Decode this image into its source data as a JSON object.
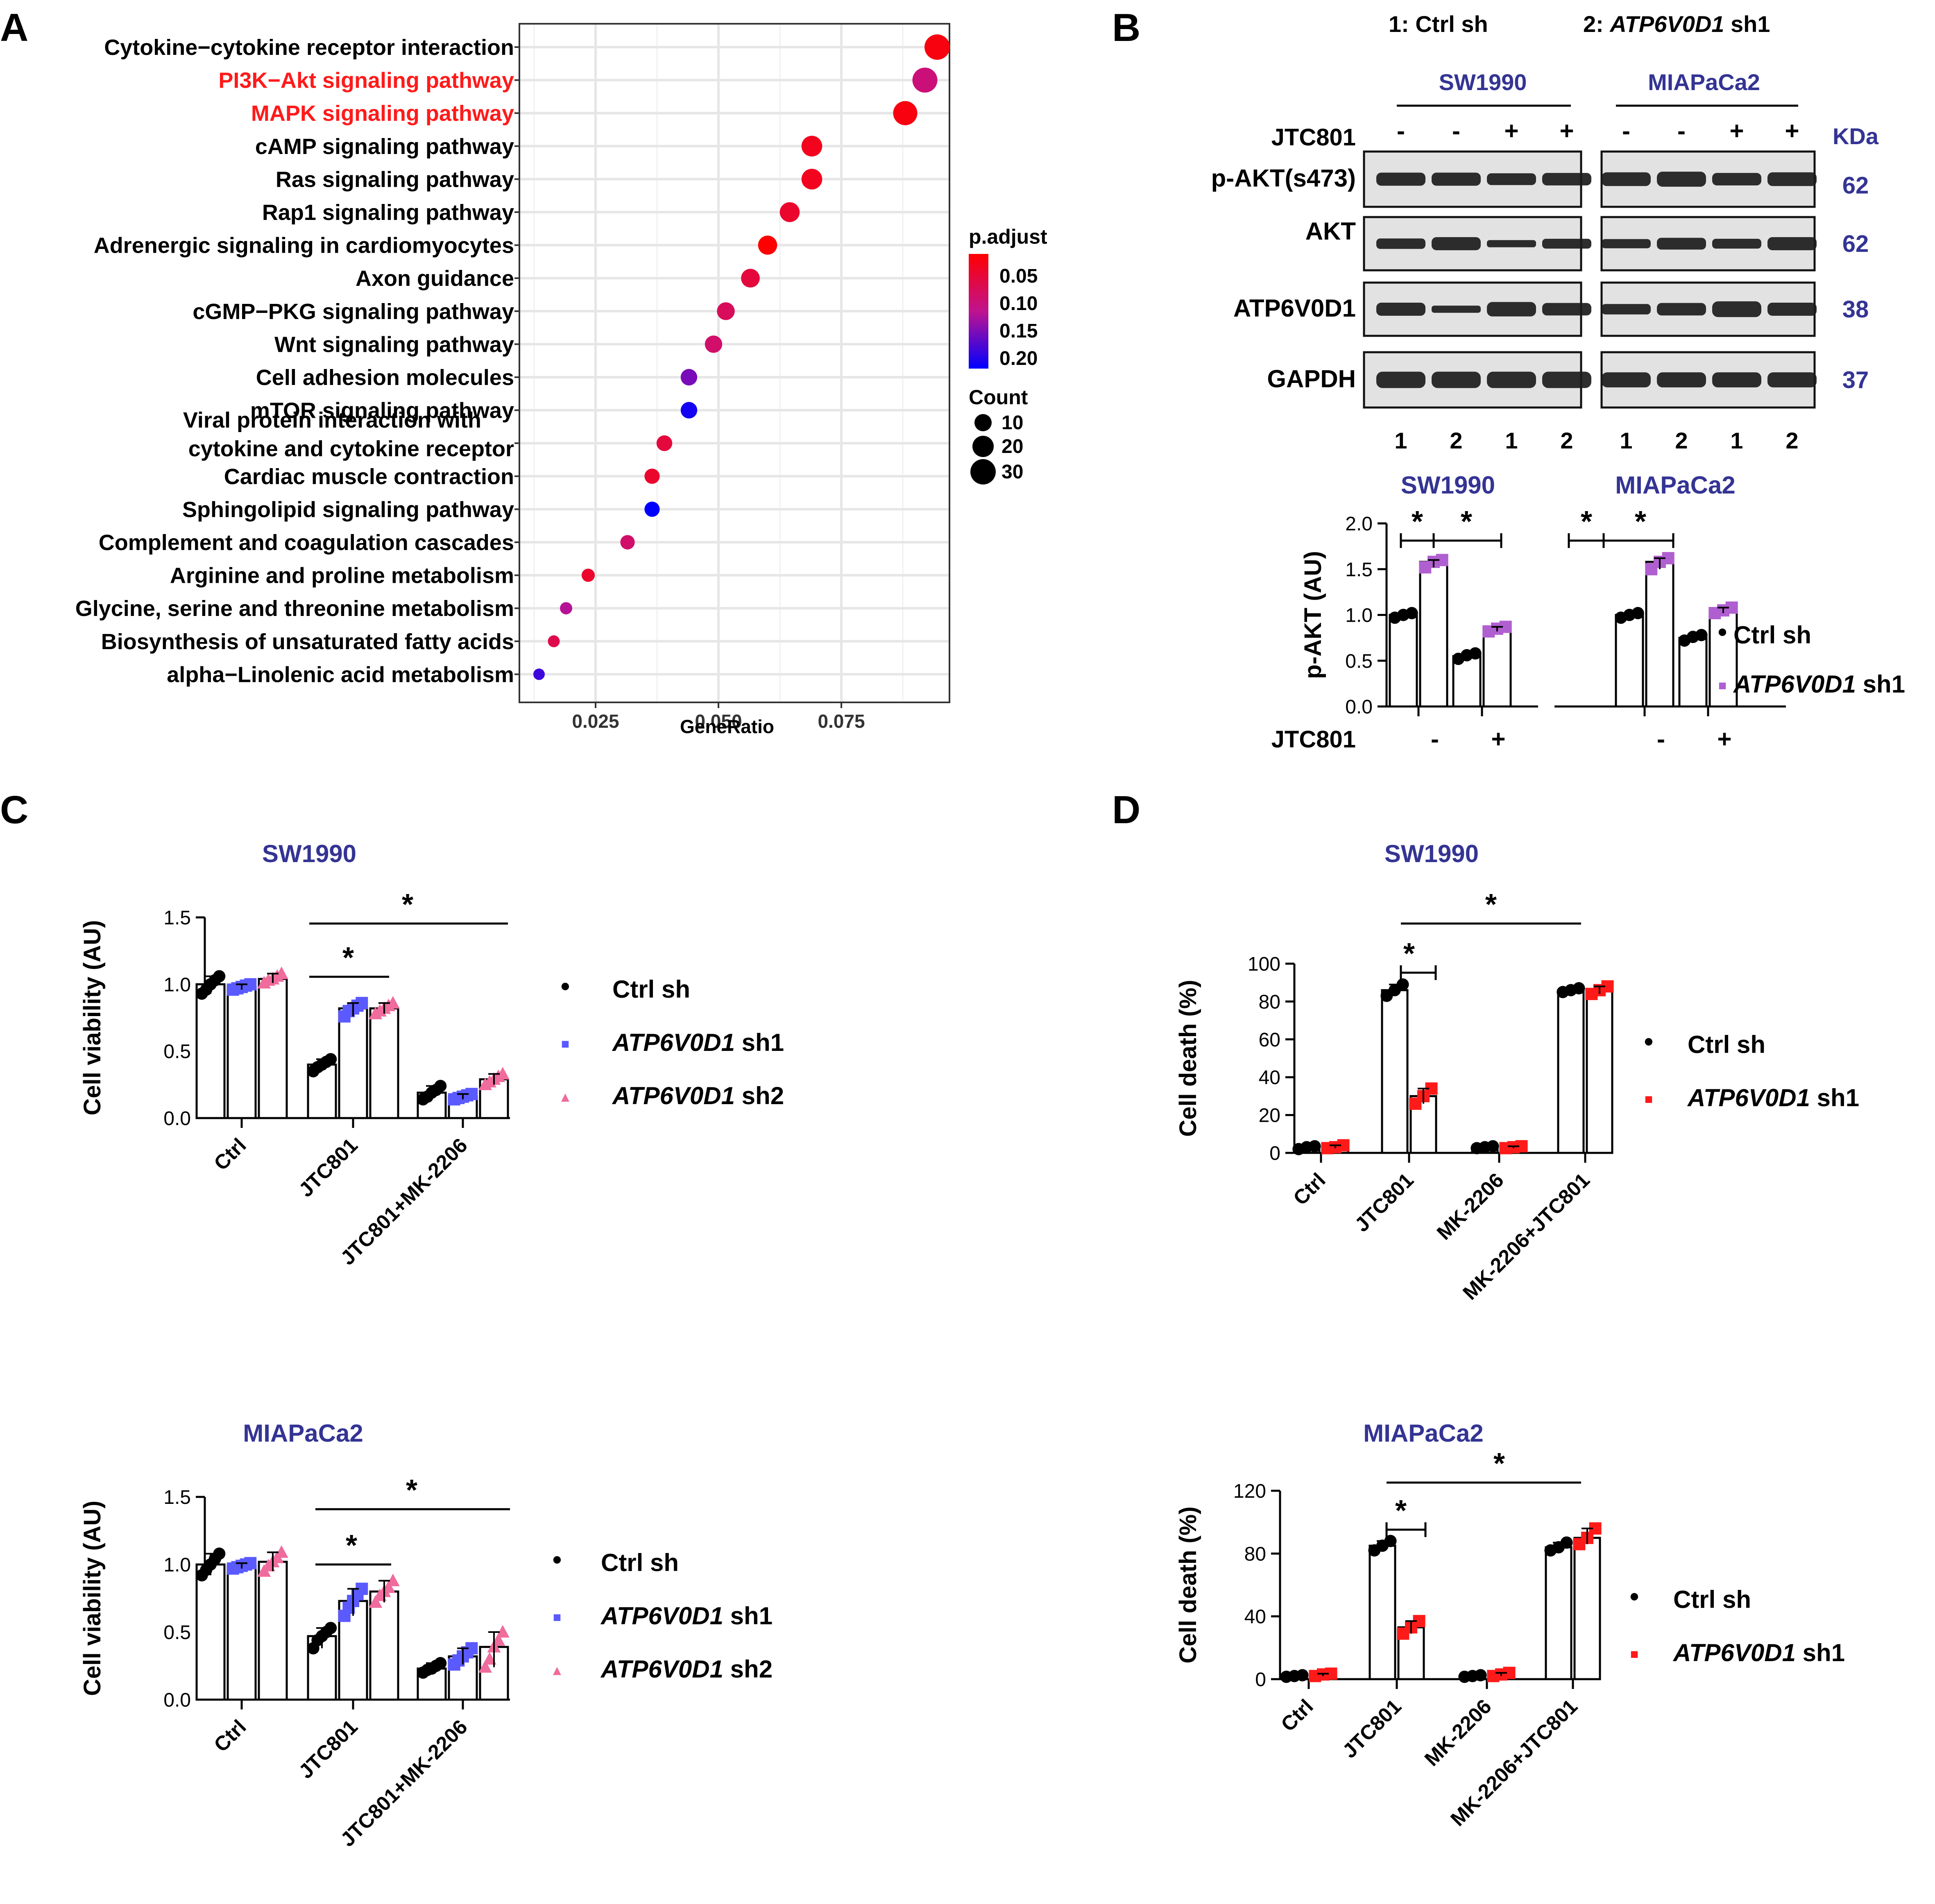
{
  "panel_labels": {
    "a": "A",
    "b": "B",
    "c": "C",
    "d": "D"
  },
  "colors": {
    "ctrl": "#000000",
    "sh1_violet": "#b05fd0",
    "sh1_blue": "#5a5aff",
    "sh2_pink": "#ef6c9c",
    "sh1_red": "#ff1a1a",
    "title_blue": "#343494",
    "highlight_red": "#ff1a1a",
    "padj_low": "#ff0000",
    "padj_high": "#0000ff"
  },
  "panel_b": {
    "legend_1": "1: Ctrl sh",
    "legend_2_prefix": "2: ",
    "legend_2_gene": "ATP6V0D1",
    "legend_2_suffix": " sh1",
    "cell_lines": [
      "SW1990",
      "MIAPaCa2"
    ],
    "treatment_label": "JTC801",
    "treatment_signs": [
      "-",
      "-",
      "+",
      "+",
      "-",
      "-",
      "+",
      "+"
    ],
    "kda_label": "KDa",
    "blots": [
      {
        "label": "p-AKT(s473)",
        "kda": "62"
      },
      {
        "label": "AKT",
        "kda": "62"
      },
      {
        "label": "ATP6V0D1",
        "kda": "38"
      },
      {
        "label": "GAPDH",
        "kda": "37"
      }
    ],
    "lane_numbers": [
      "1",
      "2",
      "1",
      "2",
      "1",
      "2",
      "1",
      "2"
    ]
  },
  "chart_data": [
    {
      "id": "A",
      "type": "scatter",
      "title": "",
      "xlabel": "GeneRatio",
      "xlim": [
        0.0095,
        0.097
      ],
      "xticks": [
        "0.025",
        "0.050",
        "0.075"
      ],
      "grid": true,
      "legend_color_title": "p.adjust",
      "legend_color_ticks": [
        "0.05",
        "0.10",
        "0.15",
        "0.20"
      ],
      "legend_size_title": "Count",
      "legend_size_ticks": [
        "10",
        "20",
        "30"
      ],
      "highlighted_terms": [
        "PI3K−Akt signaling pathway",
        "MAPK signaling pathway"
      ],
      "terms": [
        {
          "label": "Cytokine−cytokine receptor interaction",
          "x": 0.0945,
          "p_adjust": 0.03,
          "count": 39
        },
        {
          "label": "PI3K−Akt signaling pathway",
          "x": 0.092,
          "p_adjust": 0.1,
          "count": 38
        },
        {
          "label": "MAPK signaling pathway",
          "x": 0.088,
          "p_adjust": 0.03,
          "count": 36
        },
        {
          "label": "cAMP signaling pathway",
          "x": 0.069,
          "p_adjust": 0.04,
          "count": 28
        },
        {
          "label": "Ras signaling pathway",
          "x": 0.069,
          "p_adjust": 0.04,
          "count": 28
        },
        {
          "label": "Rap1 signaling pathway",
          "x": 0.0645,
          "p_adjust": 0.05,
          "count": 26
        },
        {
          "label": "Adrenergic signaling in cardiomyocytes",
          "x": 0.06,
          "p_adjust": 0.02,
          "count": 24
        },
        {
          "label": "Axon guidance",
          "x": 0.0565,
          "p_adjust": 0.06,
          "count": 23
        },
        {
          "label": "cGMP−PKG signaling pathway",
          "x": 0.0515,
          "p_adjust": 0.08,
          "count": 21
        },
        {
          "label": "Wnt signaling pathway",
          "x": 0.049,
          "p_adjust": 0.09,
          "count": 20
        },
        {
          "label": "Cell adhesion molecules",
          "x": 0.044,
          "p_adjust": 0.15,
          "count": 18
        },
        {
          "label": "mTOR signaling pathway",
          "x": 0.044,
          "p_adjust": 0.2,
          "count": 18
        },
        {
          "label": "Viral protein interaction with cytokine and cytokine receptor",
          "x": 0.039,
          "p_adjust": 0.06,
          "count": 16
        },
        {
          "label": "Cardiac muscle contraction",
          "x": 0.0365,
          "p_adjust": 0.05,
          "count": 15
        },
        {
          "label": "Sphingolipid signaling pathway",
          "x": 0.0365,
          "p_adjust": 0.21,
          "count": 15
        },
        {
          "label": "Complement and coagulation cascades",
          "x": 0.0315,
          "p_adjust": 0.09,
          "count": 13
        },
        {
          "label": "Arginine and proline metabolism",
          "x": 0.0235,
          "p_adjust": 0.05,
          "count": 10
        },
        {
          "label": "Glycine, serine and threonine metabolism",
          "x": 0.019,
          "p_adjust": 0.12,
          "count": 8
        },
        {
          "label": "Biosynthesis of unsaturated fatty acids",
          "x": 0.0165,
          "p_adjust": 0.07,
          "count": 7
        },
        {
          "label": "alpha−Linolenic acid metabolism",
          "x": 0.0135,
          "p_adjust": 0.18,
          "count": 6
        }
      ]
    },
    {
      "id": "B-quant",
      "type": "bar",
      "title": "",
      "ylabel": "p-AKT (AU)",
      "ylim": [
        0,
        2.0
      ],
      "yticks": [
        "0.0",
        "0.5",
        "1.0",
        "1.5",
        "2.0"
      ],
      "group_titles": [
        "SW1990",
        "MIAPaCa2"
      ],
      "treatment_label": "JTC801",
      "treatment_signs": [
        "-",
        "+",
        "-",
        "+"
      ],
      "sig_marker": "*",
      "legend_dot": "•",
      "legend_square": "■",
      "legend": [
        {
          "gene": "",
          "text": "Ctrl sh"
        },
        {
          "gene": "ATP6V0D1",
          "text": " sh1"
        }
      ],
      "series": [
        {
          "values": [
            1.0,
            0.55,
            1.0,
            0.75
          ],
          "points": [
            [
              0.97,
              1.0,
              1.02
            ],
            [
              0.52,
              0.56,
              0.58
            ],
            [
              0.97,
              1.0,
              1.02
            ],
            [
              0.72,
              0.76,
              0.78
            ]
          ]
        },
        {
          "values": [
            1.58,
            0.85,
            1.58,
            1.05
          ],
          "points": [
            [
              1.52,
              1.58,
              1.6
            ],
            [
              0.82,
              0.85,
              0.87
            ],
            [
              1.5,
              1.58,
              1.62
            ],
            [
              1.02,
              1.05,
              1.08
            ]
          ]
        }
      ]
    },
    {
      "id": "C-SW1990",
      "type": "bar",
      "title": "SW1990",
      "ylabel": "Cell viability (AU)",
      "ylim": [
        0,
        1.5
      ],
      "yticks": [
        "0.0",
        "0.5",
        "1.0",
        "1.5"
      ],
      "categories": [
        "Ctrl",
        "JTC801",
        "JTC801+MK-2206"
      ],
      "sig_marker": "*",
      "legend_dot": "•",
      "legend_square": "■",
      "legend_triangle": "▲",
      "legend": [
        {
          "gene": "",
          "text": "Ctrl sh"
        },
        {
          "gene": "ATP6V0D1",
          "text": " sh1"
        },
        {
          "gene": "ATP6V0D1",
          "text": " sh2"
        }
      ],
      "series": [
        {
          "values": [
            1.0,
            0.4,
            0.19
          ],
          "points": [
            [
              0.93,
              0.96,
              1.0,
              1.03,
              1.06
            ],
            [
              0.35,
              0.38,
              0.4,
              0.42,
              0.44
            ],
            [
              0.14,
              0.16,
              0.19,
              0.21,
              0.24
            ]
          ]
        },
        {
          "values": [
            0.98,
            0.82,
            0.16
          ],
          "points": [
            [
              0.96,
              0.97,
              0.98,
              0.99,
              1.0
            ],
            [
              0.76,
              0.8,
              0.82,
              0.84,
              0.86
            ],
            [
              0.14,
              0.15,
              0.16,
              0.17,
              0.18
            ]
          ]
        },
        {
          "values": [
            1.04,
            0.82,
            0.29
          ],
          "points": [
            [
              1.01,
              1.03,
              1.04,
              1.06,
              1.08
            ],
            [
              0.78,
              0.8,
              0.82,
              0.84,
              0.86
            ],
            [
              0.25,
              0.27,
              0.29,
              0.31,
              0.33
            ]
          ]
        }
      ]
    },
    {
      "id": "C-MIAPaCa2",
      "type": "bar",
      "title": "MIAPaCa2",
      "ylabel": "Cell viability (AU)",
      "ylim": [
        0,
        1.5
      ],
      "yticks": [
        "0.0",
        "0.5",
        "1.0",
        "1.5"
      ],
      "categories": [
        "Ctrl",
        "JTC801",
        "JTC801+MK-2206"
      ],
      "sig_marker": "*",
      "legend_dot": "•",
      "legend_square": "■",
      "legend_triangle": "▲",
      "legend": [
        {
          "gene": "",
          "text": "Ctrl sh"
        },
        {
          "gene": "ATP6V0D1",
          "text": " sh1"
        },
        {
          "gene": "ATP6V0D1",
          "text": " sh2"
        }
      ],
      "series": [
        {
          "values": [
            1.0,
            0.47,
            0.23
          ],
          "points": [
            [
              0.92,
              0.96,
              1.0,
              1.04,
              1.08
            ],
            [
              0.38,
              0.44,
              0.47,
              0.5,
              0.53
            ],
            [
              0.2,
              0.22,
              0.23,
              0.25,
              0.27
            ]
          ]
        },
        {
          "values": [
            0.99,
            0.73,
            0.32
          ],
          "points": [
            [
              0.97,
              0.98,
              0.99,
              1.0,
              1.01
            ],
            [
              0.62,
              0.68,
              0.73,
              0.78,
              0.82
            ],
            [
              0.26,
              0.29,
              0.32,
              0.35,
              0.38
            ]
          ]
        },
        {
          "values": [
            1.02,
            0.8,
            0.39
          ],
          "points": [
            [
              0.95,
              0.99,
              1.02,
              1.05,
              1.09
            ],
            [
              0.72,
              0.77,
              0.8,
              0.83,
              0.88
            ],
            [
              0.24,
              0.3,
              0.39,
              0.44,
              0.5
            ]
          ]
        }
      ]
    },
    {
      "id": "D-SW1990",
      "type": "bar",
      "title": "SW1990",
      "ylabel": "Cell death (%)",
      "ylim": [
        0,
        100
      ],
      "yticks": [
        "0",
        "20",
        "40",
        "60",
        "80",
        "100"
      ],
      "categories": [
        "Ctrl",
        "JTC801",
        "MK-2206",
        "MK-2206+JTC801"
      ],
      "sig_marker": "*",
      "legend_dot": "•",
      "legend_square": "■",
      "legend": [
        {
          "gene": "",
          "text": "Ctrl sh"
        },
        {
          "gene": "ATP6V0D1",
          "text": " sh1"
        }
      ],
      "series": [
        {
          "values": [
            3,
            86,
            3,
            86
          ],
          "points": [
            [
              2,
              3,
              3.5
            ],
            [
              83,
              86,
              89
            ],
            [
              2.5,
              3,
              3.5
            ],
            [
              85,
              86,
              87
            ]
          ]
        },
        {
          "values": [
            3,
            30,
            3,
            86
          ],
          "points": [
            [
              2.5,
              3,
              4
            ],
            [
              26,
              30,
              34
            ],
            [
              2.5,
              3,
              3.5
            ],
            [
              84,
              86,
              88
            ]
          ]
        }
      ]
    },
    {
      "id": "D-MIAPaCa2",
      "type": "bar",
      "title": "MIAPaCa2",
      "ylabel": "Cell death (%)",
      "ylim": [
        0,
        120
      ],
      "yticks": [
        "0",
        "40",
        "80",
        "120"
      ],
      "categories": [
        "Ctrl",
        "JTC801",
        "MK-2206",
        "MK-2206+JTC801"
      ],
      "sig_marker": "*",
      "legend_dot": "•",
      "legend_square": "■",
      "legend": [
        {
          "gene": "",
          "text": "Ctrl sh"
        },
        {
          "gene": "ATP6V0D1",
          "text": " sh1"
        }
      ],
      "series": [
        {
          "values": [
            2,
            85,
            2,
            84
          ],
          "points": [
            [
              1.5,
              2,
              2.5
            ],
            [
              82,
              85,
              88
            ],
            [
              1.5,
              2,
              2.5
            ],
            [
              82,
              84,
              87
            ]
          ]
        },
        {
          "values": [
            3,
            33,
            3,
            90
          ],
          "points": [
            [
              2,
              3,
              3.5
            ],
            [
              29,
              33,
              37
            ],
            [
              2,
              3,
              4
            ],
            [
              86,
              90,
              96
            ]
          ]
        }
      ]
    }
  ]
}
